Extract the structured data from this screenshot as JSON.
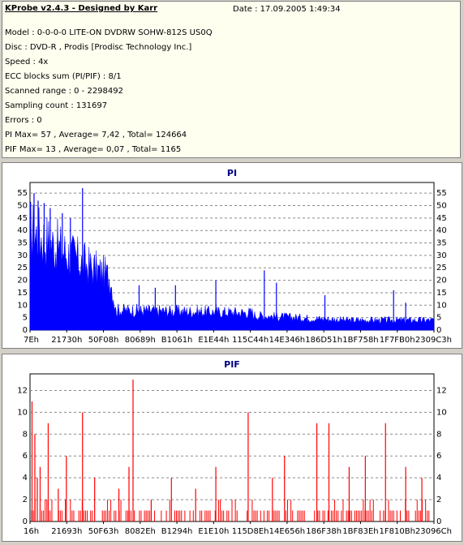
{
  "header": {
    "title": "KProbe v2.4.3 - Designed by Karr",
    "date": "Date : 17.09.2005 1:49:34",
    "lines": [
      "Model : 0-0-0-0 LITE-ON DVDRW SOHW-812S  US0Q",
      "Disc : DVD-R , Prodis [Prodisc Technology Inc.]",
      "Speed : 4x",
      "ECC blocks sum (PI/PIF) : 8/1",
      "Scanned range : 0 - 2298492",
      "Sampling count : 131697",
      "Errors : 0",
      "PI Max= 57 , Average= 7,42 , Total= 124664",
      "PIF Max= 13 , Average= 0,07 , Total= 1165"
    ]
  },
  "chart_data": [
    {
      "type": "area",
      "title": "PI",
      "color": "#0000ff",
      "ylim": [
        0,
        57
      ],
      "yticks": [
        0,
        5,
        10,
        15,
        20,
        25,
        30,
        35,
        40,
        45,
        50,
        55
      ],
      "x_tick_labels": [
        "7Eh",
        "21730h",
        "50F08h",
        "80689h",
        "B1061h",
        "E1E44h",
        "115C44h",
        "14E346h",
        "186D51h",
        "1BF758h",
        "1F7FB0h",
        "2309C3h"
      ],
      "segments": [
        {
          "from": 0.0,
          "to": 0.06,
          "y_start": 40,
          "y_end": 34
        },
        {
          "from": 0.06,
          "to": 0.14,
          "y_start": 34,
          "y_end": 26
        },
        {
          "from": 0.14,
          "to": 0.2,
          "y_start": 26,
          "y_end": 21
        },
        {
          "from": 0.2,
          "to": 0.21,
          "y_start": 20,
          "y_end": 10
        },
        {
          "from": 0.21,
          "to": 0.55,
          "y_start": 8,
          "y_end": 7
        },
        {
          "from": 0.55,
          "to": 0.78,
          "y_start": 6,
          "y_end": 4
        },
        {
          "from": 0.78,
          "to": 1.0,
          "y_start": 4,
          "y_end": 4
        }
      ],
      "spikes": [
        {
          "x": 0.01,
          "y": 55
        },
        {
          "x": 0.02,
          "y": 52
        },
        {
          "x": 0.035,
          "y": 51
        },
        {
          "x": 0.05,
          "y": 49
        },
        {
          "x": 0.08,
          "y": 47
        },
        {
          "x": 0.1,
          "y": 45
        },
        {
          "x": 0.13,
          "y": 57
        },
        {
          "x": 0.27,
          "y": 18
        },
        {
          "x": 0.31,
          "y": 17
        },
        {
          "x": 0.36,
          "y": 18
        },
        {
          "x": 0.46,
          "y": 20
        },
        {
          "x": 0.58,
          "y": 24
        },
        {
          "x": 0.61,
          "y": 19
        },
        {
          "x": 0.73,
          "y": 14
        },
        {
          "x": 0.9,
          "y": 16
        },
        {
          "x": 0.93,
          "y": 11
        }
      ]
    },
    {
      "type": "bar",
      "title": "PIF",
      "color": "#ff0000",
      "ylim": [
        0,
        13
      ],
      "yticks": [
        0,
        2,
        4,
        6,
        8,
        10,
        12
      ],
      "x_tick_labels": [
        "16h",
        "21693h",
        "50F63h",
        "8082Eh",
        "B1294h",
        "E1E10h",
        "115D8Eh",
        "14E656h",
        "186F38h",
        "1BF83Eh",
        "1F810Bh",
        "23096Ch"
      ],
      "spikes": [
        {
          "x": 0.005,
          "y": 11
        },
        {
          "x": 0.012,
          "y": 8
        },
        {
          "x": 0.018,
          "y": 4
        },
        {
          "x": 0.025,
          "y": 5
        },
        {
          "x": 0.045,
          "y": 9
        },
        {
          "x": 0.07,
          "y": 3
        },
        {
          "x": 0.09,
          "y": 6
        },
        {
          "x": 0.13,
          "y": 10
        },
        {
          "x": 0.16,
          "y": 4
        },
        {
          "x": 0.22,
          "y": 3
        },
        {
          "x": 0.245,
          "y": 5
        },
        {
          "x": 0.255,
          "y": 13
        },
        {
          "x": 0.3,
          "y": 2
        },
        {
          "x": 0.35,
          "y": 4
        },
        {
          "x": 0.41,
          "y": 3
        },
        {
          "x": 0.46,
          "y": 5
        },
        {
          "x": 0.54,
          "y": 10
        },
        {
          "x": 0.6,
          "y": 4
        },
        {
          "x": 0.63,
          "y": 6
        },
        {
          "x": 0.71,
          "y": 9
        },
        {
          "x": 0.74,
          "y": 9
        },
        {
          "x": 0.79,
          "y": 5
        },
        {
          "x": 0.83,
          "y": 6
        },
        {
          "x": 0.88,
          "y": 9
        },
        {
          "x": 0.93,
          "y": 5
        },
        {
          "x": 0.97,
          "y": 4
        }
      ]
    }
  ]
}
